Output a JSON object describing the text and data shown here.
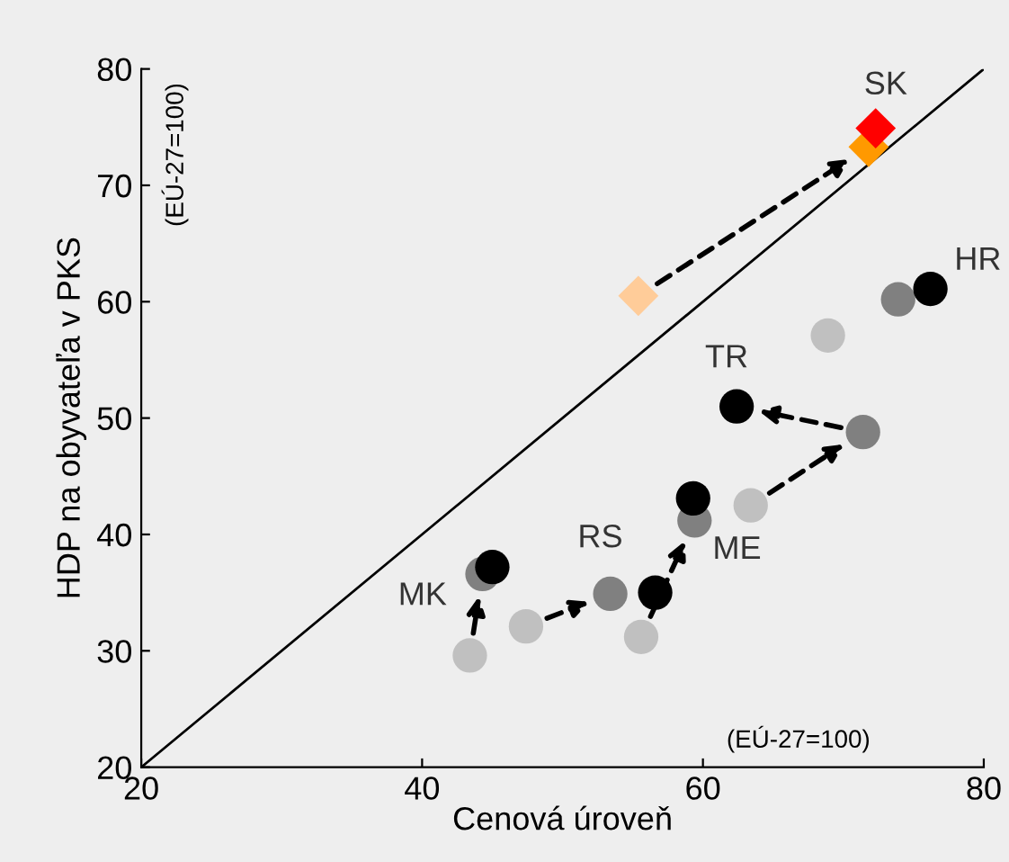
{
  "chart_data": {
    "type": "scatter",
    "xlabel": "Cenová úroveň",
    "ylabel": "HDP na obyvateľa v PKS",
    "xlim": [
      20,
      80
    ],
    "xticks": [
      20,
      40,
      60,
      80
    ],
    "ylim": [
      20,
      80
    ],
    "yticks": [
      20,
      30,
      40,
      50,
      60,
      70,
      80
    ],
    "grid": false,
    "marker": "circle",
    "series": [
      {
        "color": "#c0c0c0",
        "x": [
          43.4,
          47.4,
          55.6,
          63.4,
          68.9
        ],
        "values": [
          29.6,
          32.1,
          31.2,
          42.5,
          57.1
        ]
      },
      {
        "color": "#808080",
        "x": [
          44.3,
          53.4,
          59.4,
          71.4,
          73.9
        ],
        "values": [
          36.6,
          34.9,
          41.2,
          48.8,
          60.2
        ]
      },
      {
        "color": "#000000",
        "x": [
          45.0,
          56.6,
          59.3,
          62.4,
          76.2
        ],
        "values": [
          37.2,
          35.0,
          43.1,
          51.0,
          61.1
        ]
      },
      {
        "color": "#ffcc99",
        "marker": "diamond",
        "x": [
          55.4
        ],
        "values": [
          60.5
        ]
      },
      {
        "color": "#ff9900",
        "marker": "diamond",
        "x": [
          71.8
        ],
        "values": [
          73.3
        ]
      },
      {
        "color": "#ff0000",
        "marker": "diamond",
        "x": [
          72.3
        ],
        "values": [
          74.9
        ]
      },
      {
        "type": "line",
        "color": "#000000",
        "marker": "none",
        "x": [
          20,
          80
        ],
        "values": [
          20,
          80
        ]
      }
    ],
    "annotations": [
      "(EÚ-27=100)",
      "(EÚ-27=100)",
      {
        "text": "SK",
        "x": 72.3,
        "y": 74.9
      },
      {
        "text": "HR",
        "x": 76.2,
        "y": 61.1
      },
      {
        "text": "TR",
        "x": 62.4,
        "y": 51.0
      },
      {
        "text": "RS",
        "x": 53.4,
        "y": 34.9
      },
      {
        "text": "ME",
        "x": 59.4,
        "y": 41.2
      },
      {
        "text": "MK",
        "x": 44.3,
        "y": 36.6
      }
    ]
  }
}
